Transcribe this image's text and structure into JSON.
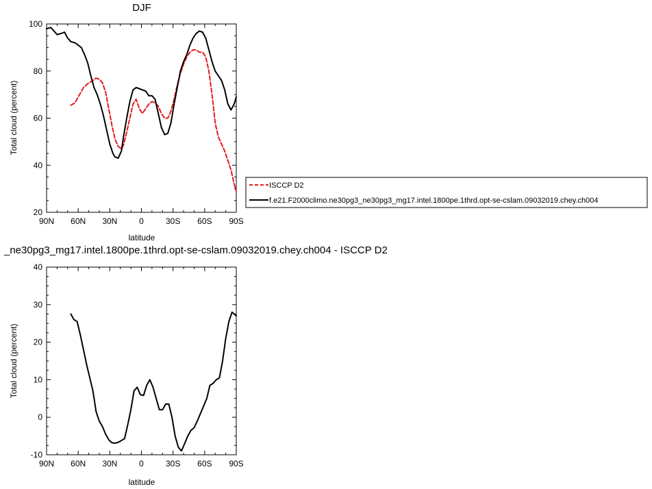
{
  "colors": {
    "model": "#000000",
    "obs": "#e41a1c",
    "frame": "#000000"
  },
  "chart_data": [
    {
      "type": "line",
      "title": "DJF",
      "xlabel": "latitude",
      "ylabel": "Total cloud (percent)",
      "xlim": [
        90,
        -90
      ],
      "ylim": [
        20,
        100
      ],
      "xticks": [
        {
          "value": 90,
          "label": "90N"
        },
        {
          "value": 60,
          "label": "60N"
        },
        {
          "value": 30,
          "label": "30N"
        },
        {
          "value": 0,
          "label": "0"
        },
        {
          "value": -30,
          "label": "30S"
        },
        {
          "value": -60,
          "label": "60S"
        },
        {
          "value": -90,
          "label": "90S"
        }
      ],
      "yticks": [
        {
          "value": 20,
          "label": "20"
        },
        {
          "value": 40,
          "label": "40"
        },
        {
          "value": 60,
          "label": "60"
        },
        {
          "value": 80,
          "label": "80"
        },
        {
          "value": 100,
          "label": "100"
        }
      ],
      "legend_position": "right",
      "series": [
        {
          "name": "ISCCP D2",
          "style": "dashed",
          "color": "#e41a1c",
          "x": [
            67,
            63,
            60,
            55,
            50,
            46,
            43,
            40,
            37,
            34,
            31,
            28,
            25,
            22,
            19,
            17,
            14,
            11,
            8,
            5,
            2,
            -1,
            -4,
            -7,
            -10,
            -13,
            -16,
            -19,
            -22,
            -25,
            -28,
            -31,
            -34,
            -37,
            -40,
            -43,
            -46,
            -49,
            -52,
            -55,
            -58,
            -61,
            -64,
            -67,
            -70,
            -73,
            -76,
            -79,
            -82,
            -85,
            -88,
            -90
          ],
          "y": [
            65.5,
            66.5,
            69,
            73,
            75,
            76,
            77,
            76.5,
            75,
            71,
            64,
            57,
            51,
            48,
            47,
            48.5,
            54,
            60,
            66,
            68,
            64,
            62,
            64,
            66,
            67,
            66.5,
            65,
            62,
            60,
            60,
            63,
            68,
            74,
            79,
            83,
            86,
            88,
            89,
            89,
            88,
            88,
            86,
            80,
            70,
            58,
            52,
            49,
            46,
            42,
            38,
            32,
            29
          ]
        },
        {
          "name": "f.e21.F2000climo.ne30pg3_ne30pg3_mg17.intel.1800pe.1thrd.opt-se-cslam.09032019.chey.ch004",
          "style": "solid",
          "color": "#000000",
          "x": [
            90,
            86,
            83,
            80,
            76,
            73,
            70,
            67,
            63,
            60,
            57,
            54,
            51,
            48,
            45,
            42,
            39,
            36,
            33,
            30,
            27,
            25,
            22,
            19,
            17,
            14,
            11,
            8,
            5,
            2,
            -1,
            -4,
            -7,
            -10,
            -13,
            -16,
            -19,
            -22,
            -25,
            -28,
            -31,
            -34,
            -37,
            -40,
            -43,
            -46,
            -49,
            -52,
            -55,
            -58,
            -61,
            -64,
            -67,
            -70,
            -73,
            -76,
            -79,
            -82,
            -85,
            -88,
            -90
          ],
          "y": [
            98,
            98.5,
            97,
            95.5,
            96,
            96.5,
            94,
            92.5,
            92,
            91,
            90,
            87,
            83.5,
            78,
            73,
            70,
            66,
            61,
            55,
            49,
            45,
            43.5,
            43,
            46,
            52,
            60,
            67,
            72,
            73,
            72.5,
            72,
            71.5,
            69.5,
            69.5,
            68,
            62,
            56,
            53,
            53.5,
            58,
            66,
            73,
            80,
            84,
            87,
            91,
            94,
            96,
            97,
            96.5,
            94,
            89,
            84,
            80,
            78,
            76,
            72,
            66,
            63.5,
            66,
            69
          ]
        }
      ]
    },
    {
      "type": "line",
      "title": "_ne30pg3_mg17.intel.1800pe.1thrd.opt-se-cslam.09032019.chey.ch004 - ISCCP D2",
      "xlabel": "latitude",
      "ylabel": "Total cloud (percent)",
      "xlim": [
        90,
        -90
      ],
      "ylim": [
        -10,
        40
      ],
      "xticks": [
        {
          "value": 90,
          "label": "90N"
        },
        {
          "value": 60,
          "label": "60N"
        },
        {
          "value": 30,
          "label": "30N"
        },
        {
          "value": 0,
          "label": "0"
        },
        {
          "value": -30,
          "label": "30S"
        },
        {
          "value": -60,
          "label": "60S"
        },
        {
          "value": -90,
          "label": "90S"
        }
      ],
      "yticks": [
        {
          "value": -10,
          "label": "-10"
        },
        {
          "value": 0,
          "label": "0"
        },
        {
          "value": 10,
          "label": "10"
        },
        {
          "value": 20,
          "label": "20"
        },
        {
          "value": 30,
          "label": "30"
        },
        {
          "value": 40,
          "label": "40"
        }
      ],
      "series": [
        {
          "style": "solid",
          "color": "#000000",
          "x": [
            67,
            64,
            61,
            58,
            55,
            52,
            49,
            46,
            43,
            40,
            37,
            34,
            31,
            28,
            25,
            22,
            19,
            16,
            13,
            10,
            7,
            4,
            1,
            -2,
            -5,
            -8,
            -11,
            -14,
            -17,
            -20,
            -23,
            -26,
            -29,
            -32,
            -35,
            -38,
            -41,
            -44,
            -47,
            -50,
            -53,
            -56,
            -59,
            -62,
            -65,
            -68,
            -71,
            -74,
            -77,
            -80,
            -83,
            -86,
            -88,
            -90
          ],
          "y": [
            27.5,
            26,
            25.5,
            22,
            18,
            14,
            10.5,
            7,
            1.5,
            -1,
            -2.5,
            -4.5,
            -6,
            -6.8,
            -6.9,
            -6.7,
            -6.2,
            -5.7,
            -2,
            2,
            7,
            8,
            6,
            5.8,
            8.5,
            10,
            8,
            5,
            2,
            2,
            3.5,
            3.5,
            0,
            -5,
            -8,
            -9,
            -7,
            -5,
            -3.5,
            -2.8,
            -1,
            1,
            3,
            5,
            8.5,
            9,
            10,
            10.5,
            15,
            21,
            25.5,
            28,
            27.5,
            27
          ]
        }
      ]
    }
  ]
}
